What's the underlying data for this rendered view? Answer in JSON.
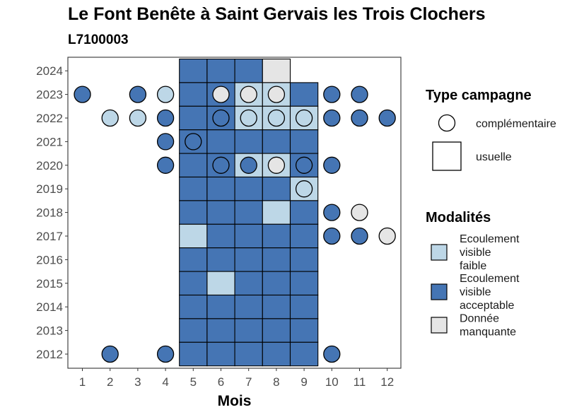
{
  "chart_data": {
    "type": "heatmap",
    "title": "Le Font Benête à Saint Gervais les Trois Clochers",
    "subtitle": "L7100003",
    "xlabel": "Mois",
    "ylabel": "",
    "x_ticks": [
      "1",
      "2",
      "3",
      "4",
      "5",
      "6",
      "7",
      "8",
      "9",
      "10",
      "11",
      "12"
    ],
    "y_ticks": [
      "2012",
      "2013",
      "2014",
      "2015",
      "2016",
      "2017",
      "2018",
      "2019",
      "2020",
      "2021",
      "2022",
      "2023",
      "2024"
    ],
    "legend_type": {
      "title": "Type campagne",
      "items": [
        {
          "label": "complémentaire",
          "shape": "circle"
        },
        {
          "label": "usuelle",
          "shape": "square"
        }
      ]
    },
    "legend_modalites": {
      "title": "Modalités",
      "items": [
        {
          "key": "faible",
          "lines": [
            "Ecoulement",
            "visible",
            "faible"
          ],
          "color": "#bdd7e7"
        },
        {
          "key": "acceptable",
          "lines": [
            "Ecoulement",
            "visible",
            "acceptable"
          ],
          "color": "#4575b4"
        },
        {
          "key": "manquante",
          "lines": [
            "Donnée",
            "manquante"
          ],
          "color": "#e5e5e5"
        }
      ]
    },
    "usuelle": [
      {
        "year": 2024,
        "month": 5,
        "value": "acceptable"
      },
      {
        "year": 2024,
        "month": 6,
        "value": "acceptable"
      },
      {
        "year": 2024,
        "month": 7,
        "value": "acceptable"
      },
      {
        "year": 2024,
        "month": 8,
        "value": "manquante"
      },
      {
        "year": 2023,
        "month": 5,
        "value": "acceptable"
      },
      {
        "year": 2023,
        "month": 6,
        "value": "acceptable"
      },
      {
        "year": 2023,
        "month": 7,
        "value": "faible"
      },
      {
        "year": 2023,
        "month": 8,
        "value": "faible"
      },
      {
        "year": 2023,
        "month": 9,
        "value": "acceptable"
      },
      {
        "year": 2022,
        "month": 5,
        "value": "acceptable"
      },
      {
        "year": 2022,
        "month": 6,
        "value": "acceptable"
      },
      {
        "year": 2022,
        "month": 7,
        "value": "faible"
      },
      {
        "year": 2022,
        "month": 8,
        "value": "faible"
      },
      {
        "year": 2022,
        "month": 9,
        "value": "faible"
      },
      {
        "year": 2021,
        "month": 5,
        "value": "acceptable"
      },
      {
        "year": 2021,
        "month": 6,
        "value": "acceptable"
      },
      {
        "year": 2021,
        "month": 7,
        "value": "acceptable"
      },
      {
        "year": 2021,
        "month": 8,
        "value": "acceptable"
      },
      {
        "year": 2021,
        "month": 9,
        "value": "acceptable"
      },
      {
        "year": 2020,
        "month": 5,
        "value": "acceptable"
      },
      {
        "year": 2020,
        "month": 6,
        "value": "acceptable"
      },
      {
        "year": 2020,
        "month": 7,
        "value": "faible"
      },
      {
        "year": 2020,
        "month": 8,
        "value": "faible"
      },
      {
        "year": 2020,
        "month": 9,
        "value": "acceptable"
      },
      {
        "year": 2019,
        "month": 5,
        "value": "acceptable"
      },
      {
        "year": 2019,
        "month": 6,
        "value": "acceptable"
      },
      {
        "year": 2019,
        "month": 7,
        "value": "acceptable"
      },
      {
        "year": 2019,
        "month": 8,
        "value": "acceptable"
      },
      {
        "year": 2019,
        "month": 9,
        "value": "faible"
      },
      {
        "year": 2018,
        "month": 5,
        "value": "acceptable"
      },
      {
        "year": 2018,
        "month": 6,
        "value": "acceptable"
      },
      {
        "year": 2018,
        "month": 7,
        "value": "acceptable"
      },
      {
        "year": 2018,
        "month": 8,
        "value": "faible"
      },
      {
        "year": 2018,
        "month": 9,
        "value": "acceptable"
      },
      {
        "year": 2017,
        "month": 5,
        "value": "faible"
      },
      {
        "year": 2017,
        "month": 6,
        "value": "acceptable"
      },
      {
        "year": 2017,
        "month": 7,
        "value": "acceptable"
      },
      {
        "year": 2017,
        "month": 8,
        "value": "acceptable"
      },
      {
        "year": 2017,
        "month": 9,
        "value": "acceptable"
      },
      {
        "year": 2016,
        "month": 5,
        "value": "acceptable"
      },
      {
        "year": 2016,
        "month": 6,
        "value": "acceptable"
      },
      {
        "year": 2016,
        "month": 7,
        "value": "acceptable"
      },
      {
        "year": 2016,
        "month": 8,
        "value": "acceptable"
      },
      {
        "year": 2016,
        "month": 9,
        "value": "acceptable"
      },
      {
        "year": 2015,
        "month": 5,
        "value": "acceptable"
      },
      {
        "year": 2015,
        "month": 6,
        "value": "faible"
      },
      {
        "year": 2015,
        "month": 7,
        "value": "acceptable"
      },
      {
        "year": 2015,
        "month": 8,
        "value": "acceptable"
      },
      {
        "year": 2015,
        "month": 9,
        "value": "acceptable"
      },
      {
        "year": 2014,
        "month": 5,
        "value": "acceptable"
      },
      {
        "year": 2014,
        "month": 6,
        "value": "acceptable"
      },
      {
        "year": 2014,
        "month": 7,
        "value": "acceptable"
      },
      {
        "year": 2014,
        "month": 8,
        "value": "acceptable"
      },
      {
        "year": 2014,
        "month": 9,
        "value": "acceptable"
      },
      {
        "year": 2013,
        "month": 5,
        "value": "acceptable"
      },
      {
        "year": 2013,
        "month": 6,
        "value": "acceptable"
      },
      {
        "year": 2013,
        "month": 7,
        "value": "acceptable"
      },
      {
        "year": 2013,
        "month": 8,
        "value": "acceptable"
      },
      {
        "year": 2013,
        "month": 9,
        "value": "acceptable"
      },
      {
        "year": 2012,
        "month": 5,
        "value": "acceptable"
      },
      {
        "year": 2012,
        "month": 6,
        "value": "acceptable"
      },
      {
        "year": 2012,
        "month": 7,
        "value": "acceptable"
      },
      {
        "year": 2012,
        "month": 8,
        "value": "acceptable"
      },
      {
        "year": 2012,
        "month": 9,
        "value": "acceptable"
      }
    ],
    "complementaire": [
      {
        "year": 2023,
        "month": 1,
        "value": "acceptable"
      },
      {
        "year": 2023,
        "month": 3,
        "value": "acceptable"
      },
      {
        "year": 2023,
        "month": 4,
        "value": "faible"
      },
      {
        "year": 2023,
        "month": 6,
        "value": "manquante"
      },
      {
        "year": 2023,
        "month": 7,
        "value": "manquante"
      },
      {
        "year": 2023,
        "month": 8,
        "value": "manquante"
      },
      {
        "year": 2023,
        "month": 10,
        "value": "acceptable"
      },
      {
        "year": 2023,
        "month": 11,
        "value": "acceptable"
      },
      {
        "year": 2022,
        "month": 2,
        "value": "faible"
      },
      {
        "year": 2022,
        "month": 3,
        "value": "faible"
      },
      {
        "year": 2022,
        "month": 4,
        "value": "acceptable"
      },
      {
        "year": 2022,
        "month": 6,
        "value": "acceptable"
      },
      {
        "year": 2022,
        "month": 7,
        "value": "faible"
      },
      {
        "year": 2022,
        "month": 8,
        "value": "faible"
      },
      {
        "year": 2022,
        "month": 9,
        "value": "faible"
      },
      {
        "year": 2022,
        "month": 10,
        "value": "acceptable"
      },
      {
        "year": 2022,
        "month": 11,
        "value": "acceptable"
      },
      {
        "year": 2022,
        "month": 12,
        "value": "acceptable"
      },
      {
        "year": 2021,
        "month": 4,
        "value": "acceptable"
      },
      {
        "year": 2021,
        "month": 5,
        "value": "acceptable"
      },
      {
        "year": 2020,
        "month": 4,
        "value": "acceptable"
      },
      {
        "year": 2020,
        "month": 6,
        "value": "acceptable"
      },
      {
        "year": 2020,
        "month": 7,
        "value": "acceptable"
      },
      {
        "year": 2020,
        "month": 8,
        "value": "manquante"
      },
      {
        "year": 2020,
        "month": 9,
        "value": "acceptable"
      },
      {
        "year": 2020,
        "month": 10,
        "value": "acceptable"
      },
      {
        "year": 2019,
        "month": 9,
        "value": "faible"
      },
      {
        "year": 2018,
        "month": 10,
        "value": "acceptable"
      },
      {
        "year": 2018,
        "month": 11,
        "value": "manquante"
      },
      {
        "year": 2017,
        "month": 10,
        "value": "acceptable"
      },
      {
        "year": 2017,
        "month": 11,
        "value": "acceptable"
      },
      {
        "year": 2017,
        "month": 12,
        "value": "manquante"
      },
      {
        "year": 2012,
        "month": 2,
        "value": "acceptable"
      },
      {
        "year": 2012,
        "month": 4,
        "value": "acceptable"
      },
      {
        "year": 2012,
        "month": 10,
        "value": "acceptable"
      }
    ]
  }
}
